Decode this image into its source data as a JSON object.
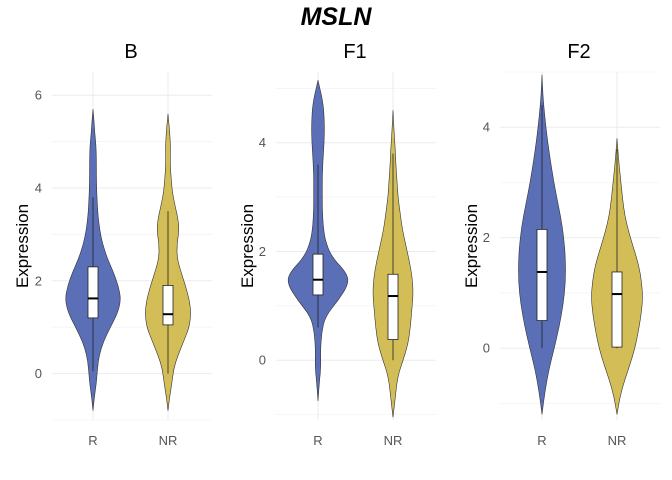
{
  "title": "MSLN",
  "chart_data": [
    {
      "type": "violin",
      "panel": "B",
      "xlabel": "",
      "ylabel": "Expression",
      "categories": [
        "R",
        "NR"
      ],
      "ylim": [
        -1.0,
        6.5
      ],
      "yticks": [
        0,
        2,
        4,
        6
      ],
      "grid": true,
      "colors": [
        "#5b6fb7",
        "#d3bd56"
      ],
      "series": [
        {
          "category": "R",
          "min": -0.8,
          "q1": 1.2,
          "median": 1.62,
          "q3": 2.3,
          "max": 5.7,
          "whisker_low": 0.05,
          "whisker_high": 3.8,
          "density": [
            [
              -0.8,
              0.0
            ],
            [
              -0.5,
              0.05
            ],
            [
              -0.2,
              0.12
            ],
            [
              0.1,
              0.16
            ],
            [
              0.4,
              0.22
            ],
            [
              0.7,
              0.38
            ],
            [
              1.0,
              0.62
            ],
            [
              1.3,
              0.88
            ],
            [
              1.6,
              1.0
            ],
            [
              1.9,
              0.9
            ],
            [
              2.2,
              0.72
            ],
            [
              2.5,
              0.5
            ],
            [
              2.8,
              0.34
            ],
            [
              3.1,
              0.24
            ],
            [
              3.4,
              0.18
            ],
            [
              3.7,
              0.15
            ],
            [
              4.0,
              0.13
            ],
            [
              4.3,
              0.12
            ],
            [
              4.6,
              0.12
            ],
            [
              4.9,
              0.11
            ],
            [
              5.2,
              0.06
            ],
            [
              5.5,
              0.03
            ],
            [
              5.7,
              0.0
            ]
          ]
        },
        {
          "category": "NR",
          "min": -0.8,
          "q1": 1.05,
          "median": 1.28,
          "q3": 1.9,
          "max": 5.6,
          "whisker_low": 0.0,
          "whisker_high": 3.5,
          "density": [
            [
              -0.8,
              0.0
            ],
            [
              -0.5,
              0.06
            ],
            [
              -0.2,
              0.14
            ],
            [
              0.1,
              0.2
            ],
            [
              0.4,
              0.36
            ],
            [
              0.7,
              0.56
            ],
            [
              1.0,
              0.76
            ],
            [
              1.3,
              0.82
            ],
            [
              1.6,
              0.76
            ],
            [
              1.9,
              0.62
            ],
            [
              2.2,
              0.46
            ],
            [
              2.5,
              0.32
            ],
            [
              2.8,
              0.32
            ],
            [
              3.1,
              0.4
            ],
            [
              3.4,
              0.34
            ],
            [
              3.7,
              0.22
            ],
            [
              4.0,
              0.14
            ],
            [
              4.3,
              0.1
            ],
            [
              4.6,
              0.08
            ],
            [
              4.9,
              0.09
            ],
            [
              5.2,
              0.06
            ],
            [
              5.4,
              0.03
            ],
            [
              5.6,
              0.0
            ]
          ]
        }
      ]
    },
    {
      "type": "violin",
      "panel": "F1",
      "xlabel": "",
      "ylabel": "Expression",
      "categories": [
        "R",
        "NR"
      ],
      "ylim": [
        -1.1,
        5.3
      ],
      "yticks": [
        0,
        2,
        4
      ],
      "grid": true,
      "colors": [
        "#5b6fb7",
        "#d3bd56"
      ],
      "series": [
        {
          "category": "R",
          "min": -0.75,
          "q1": 1.2,
          "median": 1.48,
          "q3": 1.95,
          "max": 5.15,
          "whisker_low": 0.6,
          "whisker_high": 3.6,
          "density": [
            [
              -0.75,
              0.0
            ],
            [
              -0.4,
              0.04
            ],
            [
              -0.1,
              0.08
            ],
            [
              0.2,
              0.07
            ],
            [
              0.5,
              0.1
            ],
            [
              0.8,
              0.2
            ],
            [
              1.1,
              0.56
            ],
            [
              1.4,
              0.85
            ],
            [
              1.6,
              0.8
            ],
            [
              1.9,
              0.38
            ],
            [
              2.2,
              0.2
            ],
            [
              2.5,
              0.14
            ],
            [
              2.8,
              0.12
            ],
            [
              3.1,
              0.12
            ],
            [
              3.4,
              0.12
            ],
            [
              3.7,
              0.14
            ],
            [
              4.0,
              0.17
            ],
            [
              4.3,
              0.18
            ],
            [
              4.6,
              0.16
            ],
            [
              4.8,
              0.12
            ],
            [
              5.0,
              0.05
            ],
            [
              5.15,
              0.0
            ]
          ]
        },
        {
          "category": "NR",
          "min": -1.05,
          "q1": 0.38,
          "median": 1.18,
          "q3": 1.58,
          "max": 4.6,
          "whisker_low": 0.0,
          "whisker_high": 3.8,
          "density": [
            [
              -1.05,
              0.0
            ],
            [
              -0.7,
              0.06
            ],
            [
              -0.3,
              0.13
            ],
            [
              0.0,
              0.28
            ],
            [
              0.3,
              0.42
            ],
            [
              0.6,
              0.48
            ],
            [
              0.9,
              0.52
            ],
            [
              1.2,
              0.56
            ],
            [
              1.5,
              0.54
            ],
            [
              1.8,
              0.46
            ],
            [
              2.1,
              0.36
            ],
            [
              2.4,
              0.26
            ],
            [
              2.7,
              0.2
            ],
            [
              3.0,
              0.14
            ],
            [
              3.3,
              0.11
            ],
            [
              3.6,
              0.08
            ],
            [
              3.9,
              0.06
            ],
            [
              4.2,
              0.03
            ],
            [
              4.6,
              0.0
            ]
          ]
        }
      ]
    },
    {
      "type": "violin",
      "panel": "F2",
      "xlabel": "",
      "ylabel": "Expression",
      "categories": [
        "R",
        "NR"
      ],
      "ylim": [
        -1.3,
        5.0
      ],
      "yticks": [
        0,
        2,
        4
      ],
      "grid": true,
      "colors": [
        "#5b6fb7",
        "#d3bd56"
      ],
      "series": [
        {
          "category": "R",
          "min": -1.2,
          "q1": 0.5,
          "median": 1.38,
          "q3": 2.15,
          "max": 4.95,
          "whisker_low": 0.0,
          "whisker_high": 4.4,
          "density": [
            [
              -1.2,
              0.0
            ],
            [
              -0.8,
              0.1
            ],
            [
              -0.4,
              0.24
            ],
            [
              0.0,
              0.44
            ],
            [
              0.4,
              0.62
            ],
            [
              0.8,
              0.76
            ],
            [
              1.2,
              0.84
            ],
            [
              1.6,
              0.84
            ],
            [
              2.0,
              0.78
            ],
            [
              2.4,
              0.66
            ],
            [
              2.8,
              0.5
            ],
            [
              3.2,
              0.36
            ],
            [
              3.6,
              0.24
            ],
            [
              4.0,
              0.14
            ],
            [
              4.4,
              0.06
            ],
            [
              4.7,
              0.02
            ],
            [
              4.95,
              0.0
            ]
          ]
        },
        {
          "category": "NR",
          "min": -1.2,
          "q1": 0.02,
          "median": 0.98,
          "q3": 1.38,
          "max": 3.8,
          "whisker_low": 0.0,
          "whisker_high": 3.6,
          "density": [
            [
              -1.2,
              0.0
            ],
            [
              -0.9,
              0.1
            ],
            [
              -0.6,
              0.26
            ],
            [
              -0.3,
              0.46
            ],
            [
              0.0,
              0.64
            ],
            [
              0.3,
              0.76
            ],
            [
              0.6,
              0.86
            ],
            [
              0.9,
              0.92
            ],
            [
              1.2,
              0.88
            ],
            [
              1.5,
              0.78
            ],
            [
              1.8,
              0.6
            ],
            [
              2.1,
              0.42
            ],
            [
              2.4,
              0.28
            ],
            [
              2.7,
              0.2
            ],
            [
              3.0,
              0.14
            ],
            [
              3.3,
              0.08
            ],
            [
              3.6,
              0.03
            ],
            [
              3.8,
              0.0
            ]
          ]
        }
      ]
    }
  ]
}
